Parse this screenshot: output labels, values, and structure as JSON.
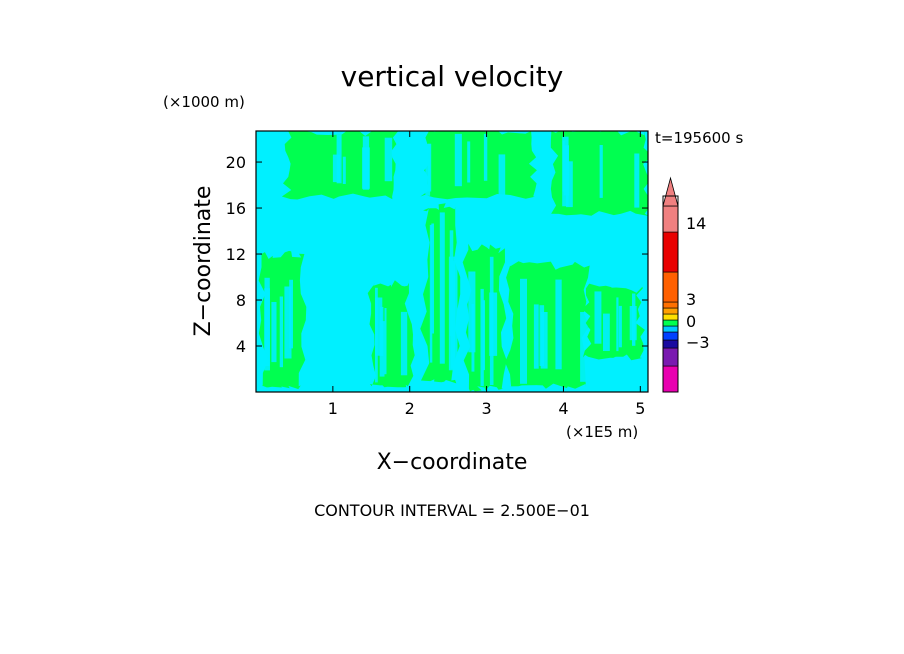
{
  "chart_data": {
    "type": "heatmap",
    "title": "vertical velocity",
    "xlabel": "X−coordinate",
    "ylabel": "Z−coordinate",
    "x_unit": "(×1E5 m)",
    "y_unit": "(×1000 m)",
    "time_label": "t=195600 s",
    "footer": "CONTOUR INTERVAL = 2.500E−01",
    "xlim": [
      0,
      5.1
    ],
    "ylim": [
      0,
      22.7
    ],
    "x_ticks": [
      1,
      2,
      3,
      4,
      5
    ],
    "y_ticks": [
      4,
      8,
      12,
      16,
      20
    ],
    "colorbar": {
      "tick_values": [
        14,
        3,
        0,
        -3
      ],
      "tick_labels": [
        "14",
        "3",
        "0",
        "−3"
      ],
      "bands": [
        {
          "color": "#e800b0"
        },
        {
          "color": "#7a1ab0"
        },
        {
          "color": "#1a0aa0"
        },
        {
          "color": "#0040ff"
        },
        {
          "color": "#00c8ff"
        },
        {
          "color": "#00ff50"
        },
        {
          "color": "#ffe000"
        },
        {
          "color": "#ffa000"
        },
        {
          "color": "#ff7000"
        },
        {
          "color": "#ff6000"
        },
        {
          "color": "#e80000"
        },
        {
          "color": "#f08080"
        }
      ],
      "extend_max_color": "#f08080"
    },
    "field_colors": {
      "negative": "#00f0ff",
      "positive": "#00ff50"
    },
    "field_description_regions": [
      {
        "x": [
          0.1,
          0.6
        ],
        "z": [
          0.5,
          12.0
        ],
        "sign": "positive"
      },
      {
        "x": [
          1.5,
          2.0
        ],
        "z": [
          0.5,
          9.5
        ],
        "sign": "positive"
      },
      {
        "x": [
          2.2,
          2.6
        ],
        "z": [
          1.0,
          16.0
        ],
        "sign": "positive"
      },
      {
        "x": [
          2.75,
          3.2
        ],
        "z": [
          0.3,
          12.5
        ],
        "sign": "positive"
      },
      {
        "x": [
          3.3,
          4.3
        ],
        "z": [
          0.5,
          11.0
        ],
        "sign": "positive"
      },
      {
        "x": [
          4.3,
          5.0
        ],
        "z": [
          3.0,
          9.0
        ],
        "sign": "positive"
      },
      {
        "x": [
          0.4,
          1.8
        ],
        "z": [
          17.0,
          22.7
        ],
        "sign": "positive"
      },
      {
        "x": [
          2.2,
          3.6
        ],
        "z": [
          17.0,
          22.7
        ],
        "sign": "positive"
      },
      {
        "x": [
          3.9,
          5.1
        ],
        "z": [
          15.5,
          22.7
        ],
        "sign": "positive"
      }
    ]
  }
}
